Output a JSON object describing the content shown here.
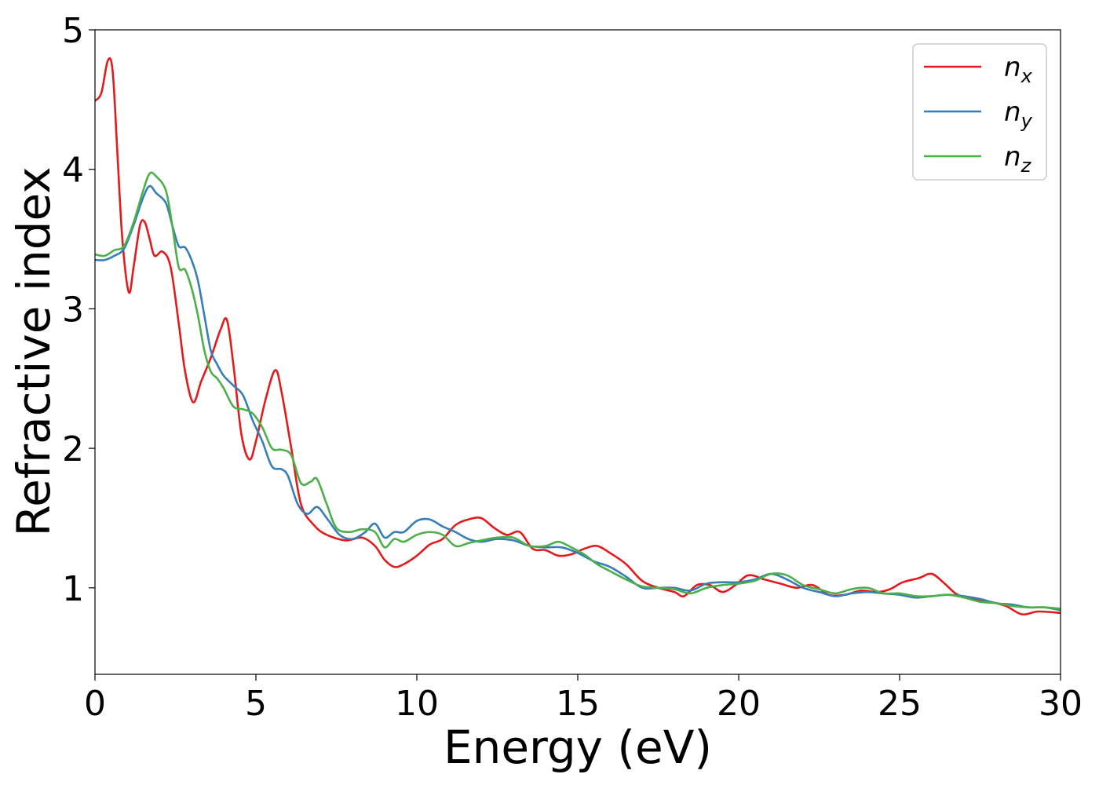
{
  "chart_data": {
    "type": "line",
    "title": "",
    "xlabel": "Energy (eV)",
    "ylabel": "Refractive index",
    "xlim": [
      0,
      30
    ],
    "ylim": [
      0.38,
      5
    ],
    "xticks": [
      0,
      5,
      10,
      15,
      20,
      25,
      30
    ],
    "yticks": [
      1,
      2,
      3,
      4,
      5
    ],
    "grid": false,
    "legend_position": "top-right",
    "series": [
      {
        "name": "n",
        "subscript": "x",
        "color": "#e41a1c",
        "points": [
          [
            0,
            4.49
          ],
          [
            0.2,
            4.55
          ],
          [
            0.4,
            4.78
          ],
          [
            0.55,
            4.7
          ],
          [
            0.7,
            4.1
          ],
          [
            0.85,
            3.5
          ],
          [
            1.05,
            3.12
          ],
          [
            1.2,
            3.3
          ],
          [
            1.4,
            3.6
          ],
          [
            1.55,
            3.62
          ],
          [
            1.7,
            3.5
          ],
          [
            1.85,
            3.38
          ],
          [
            2.1,
            3.41
          ],
          [
            2.35,
            3.3
          ],
          [
            2.6,
            2.9
          ],
          [
            2.8,
            2.55
          ],
          [
            3.05,
            2.33
          ],
          [
            3.3,
            2.48
          ],
          [
            3.6,
            2.65
          ],
          [
            3.9,
            2.85
          ],
          [
            4.1,
            2.92
          ],
          [
            4.3,
            2.6
          ],
          [
            4.55,
            2.1
          ],
          [
            4.8,
            1.92
          ],
          [
            5.0,
            2.05
          ],
          [
            5.3,
            2.35
          ],
          [
            5.6,
            2.56
          ],
          [
            5.8,
            2.4
          ],
          [
            6.1,
            2.0
          ],
          [
            6.4,
            1.6
          ],
          [
            6.8,
            1.45
          ],
          [
            7.2,
            1.38
          ],
          [
            7.8,
            1.34
          ],
          [
            8.3,
            1.36
          ],
          [
            8.7,
            1.3
          ],
          [
            9.0,
            1.2
          ],
          [
            9.3,
            1.15
          ],
          [
            9.6,
            1.17
          ],
          [
            10.0,
            1.23
          ],
          [
            10.4,
            1.31
          ],
          [
            10.8,
            1.35
          ],
          [
            11.2,
            1.45
          ],
          [
            11.6,
            1.49
          ],
          [
            12.0,
            1.5
          ],
          [
            12.4,
            1.43
          ],
          [
            12.8,
            1.38
          ],
          [
            13.2,
            1.4
          ],
          [
            13.6,
            1.28
          ],
          [
            14.0,
            1.27
          ],
          [
            14.4,
            1.23
          ],
          [
            14.8,
            1.24
          ],
          [
            15.2,
            1.28
          ],
          [
            15.6,
            1.3
          ],
          [
            16.0,
            1.25
          ],
          [
            16.5,
            1.17
          ],
          [
            17.0,
            1.05
          ],
          [
            17.5,
            1.0
          ],
          [
            18.0,
            0.97
          ],
          [
            18.3,
            0.94
          ],
          [
            18.7,
            1.02
          ],
          [
            19.1,
            1.02
          ],
          [
            19.5,
            0.97
          ],
          [
            19.9,
            1.02
          ],
          [
            20.3,
            1.09
          ],
          [
            20.8,
            1.06
          ],
          [
            21.3,
            1.03
          ],
          [
            21.8,
            1.0
          ],
          [
            22.3,
            1.02
          ],
          [
            22.8,
            0.95
          ],
          [
            23.3,
            0.95
          ],
          [
            23.8,
            0.98
          ],
          [
            24.3,
            0.97
          ],
          [
            24.7,
            0.99
          ],
          [
            25.1,
            1.04
          ],
          [
            25.6,
            1.07
          ],
          [
            26.0,
            1.1
          ],
          [
            26.4,
            1.03
          ],
          [
            26.8,
            0.95
          ],
          [
            27.3,
            0.92
          ],
          [
            27.8,
            0.9
          ],
          [
            28.3,
            0.87
          ],
          [
            28.8,
            0.81
          ],
          [
            29.3,
            0.83
          ],
          [
            30.0,
            0.82
          ]
        ]
      },
      {
        "name": "n",
        "subscript": "y",
        "color": "#377eb8",
        "points": [
          [
            0,
            3.35
          ],
          [
            0.3,
            3.35
          ],
          [
            0.6,
            3.38
          ],
          [
            0.9,
            3.43
          ],
          [
            1.2,
            3.6
          ],
          [
            1.5,
            3.8
          ],
          [
            1.7,
            3.88
          ],
          [
            1.9,
            3.83
          ],
          [
            2.2,
            3.76
          ],
          [
            2.4,
            3.6
          ],
          [
            2.6,
            3.45
          ],
          [
            2.8,
            3.44
          ],
          [
            3.0,
            3.35
          ],
          [
            3.2,
            3.2
          ],
          [
            3.4,
            2.95
          ],
          [
            3.6,
            2.7
          ],
          [
            3.8,
            2.6
          ],
          [
            4.0,
            2.52
          ],
          [
            4.3,
            2.45
          ],
          [
            4.6,
            2.38
          ],
          [
            4.9,
            2.2
          ],
          [
            5.2,
            2.05
          ],
          [
            5.5,
            1.87
          ],
          [
            5.8,
            1.85
          ],
          [
            6.0,
            1.8
          ],
          [
            6.3,
            1.6
          ],
          [
            6.6,
            1.53
          ],
          [
            6.9,
            1.58
          ],
          [
            7.2,
            1.5
          ],
          [
            7.6,
            1.38
          ],
          [
            8.0,
            1.35
          ],
          [
            8.4,
            1.4
          ],
          [
            8.7,
            1.46
          ],
          [
            9.0,
            1.36
          ],
          [
            9.3,
            1.4
          ],
          [
            9.6,
            1.4
          ],
          [
            10.0,
            1.48
          ],
          [
            10.4,
            1.49
          ],
          [
            10.8,
            1.44
          ],
          [
            11.2,
            1.4
          ],
          [
            11.6,
            1.35
          ],
          [
            12.0,
            1.33
          ],
          [
            12.5,
            1.35
          ],
          [
            13.0,
            1.34
          ],
          [
            13.5,
            1.3
          ],
          [
            14.0,
            1.29
          ],
          [
            14.5,
            1.29
          ],
          [
            15.0,
            1.25
          ],
          [
            15.5,
            1.19
          ],
          [
            16.0,
            1.15
          ],
          [
            16.5,
            1.08
          ],
          [
            17.0,
            1.0
          ],
          [
            17.5,
            1.0
          ],
          [
            18.0,
            1.0
          ],
          [
            18.5,
            0.98
          ],
          [
            19.0,
            1.03
          ],
          [
            19.5,
            1.04
          ],
          [
            20.0,
            1.04
          ],
          [
            20.5,
            1.06
          ],
          [
            21.0,
            1.1
          ],
          [
            21.5,
            1.06
          ],
          [
            22.0,
            1.0
          ],
          [
            22.5,
            0.97
          ],
          [
            23.0,
            0.94
          ],
          [
            23.5,
            0.96
          ],
          [
            24.0,
            0.97
          ],
          [
            24.5,
            0.96
          ],
          [
            25.0,
            0.95
          ],
          [
            25.5,
            0.93
          ],
          [
            26.0,
            0.94
          ],
          [
            26.5,
            0.95
          ],
          [
            27.0,
            0.94
          ],
          [
            27.5,
            0.92
          ],
          [
            28.0,
            0.89
          ],
          [
            28.5,
            0.88
          ],
          [
            29.0,
            0.86
          ],
          [
            29.5,
            0.86
          ],
          [
            30.0,
            0.84
          ]
        ]
      },
      {
        "name": "n",
        "subscript": "z",
        "color": "#4daf4a",
        "points": [
          [
            0,
            3.39
          ],
          [
            0.3,
            3.38
          ],
          [
            0.6,
            3.42
          ],
          [
            0.9,
            3.45
          ],
          [
            1.2,
            3.62
          ],
          [
            1.5,
            3.85
          ],
          [
            1.7,
            3.97
          ],
          [
            1.9,
            3.95
          ],
          [
            2.2,
            3.85
          ],
          [
            2.4,
            3.6
          ],
          [
            2.6,
            3.3
          ],
          [
            2.8,
            3.28
          ],
          [
            3.0,
            3.15
          ],
          [
            3.2,
            2.95
          ],
          [
            3.4,
            2.7
          ],
          [
            3.6,
            2.55
          ],
          [
            3.8,
            2.5
          ],
          [
            4.0,
            2.43
          ],
          [
            4.3,
            2.3
          ],
          [
            4.6,
            2.28
          ],
          [
            4.9,
            2.25
          ],
          [
            5.2,
            2.15
          ],
          [
            5.5,
            2.0
          ],
          [
            5.8,
            1.99
          ],
          [
            6.1,
            1.95
          ],
          [
            6.4,
            1.75
          ],
          [
            6.7,
            1.76
          ],
          [
            6.9,
            1.78
          ],
          [
            7.2,
            1.6
          ],
          [
            7.5,
            1.43
          ],
          [
            7.9,
            1.4
          ],
          [
            8.3,
            1.42
          ],
          [
            8.7,
            1.4
          ],
          [
            9.0,
            1.29
          ],
          [
            9.3,
            1.35
          ],
          [
            9.6,
            1.33
          ],
          [
            10.0,
            1.38
          ],
          [
            10.4,
            1.4
          ],
          [
            10.8,
            1.38
          ],
          [
            11.2,
            1.3
          ],
          [
            11.6,
            1.32
          ],
          [
            12.0,
            1.34
          ],
          [
            12.5,
            1.36
          ],
          [
            13.0,
            1.36
          ],
          [
            13.5,
            1.3
          ],
          [
            14.0,
            1.3
          ],
          [
            14.4,
            1.33
          ],
          [
            14.8,
            1.29
          ],
          [
            15.2,
            1.24
          ],
          [
            15.6,
            1.17
          ],
          [
            16.0,
            1.12
          ],
          [
            16.5,
            1.06
          ],
          [
            17.0,
            1.01
          ],
          [
            17.5,
            1.0
          ],
          [
            18.0,
            0.99
          ],
          [
            18.5,
            0.96
          ],
          [
            19.0,
            1.0
          ],
          [
            19.5,
            1.02
          ],
          [
            20.0,
            1.03
          ],
          [
            20.5,
            1.05
          ],
          [
            21.0,
            1.1
          ],
          [
            21.5,
            1.09
          ],
          [
            22.0,
            1.02
          ],
          [
            22.5,
            0.99
          ],
          [
            23.0,
            0.96
          ],
          [
            23.5,
            0.99
          ],
          [
            24.0,
            1.0
          ],
          [
            24.5,
            0.96
          ],
          [
            25.0,
            0.96
          ],
          [
            25.5,
            0.94
          ],
          [
            26.0,
            0.94
          ],
          [
            26.5,
            0.95
          ],
          [
            27.0,
            0.93
          ],
          [
            27.5,
            0.9
          ],
          [
            28.0,
            0.89
          ],
          [
            28.5,
            0.87
          ],
          [
            29.0,
            0.86
          ],
          [
            29.5,
            0.86
          ],
          [
            30.0,
            0.85
          ]
        ]
      }
    ]
  }
}
